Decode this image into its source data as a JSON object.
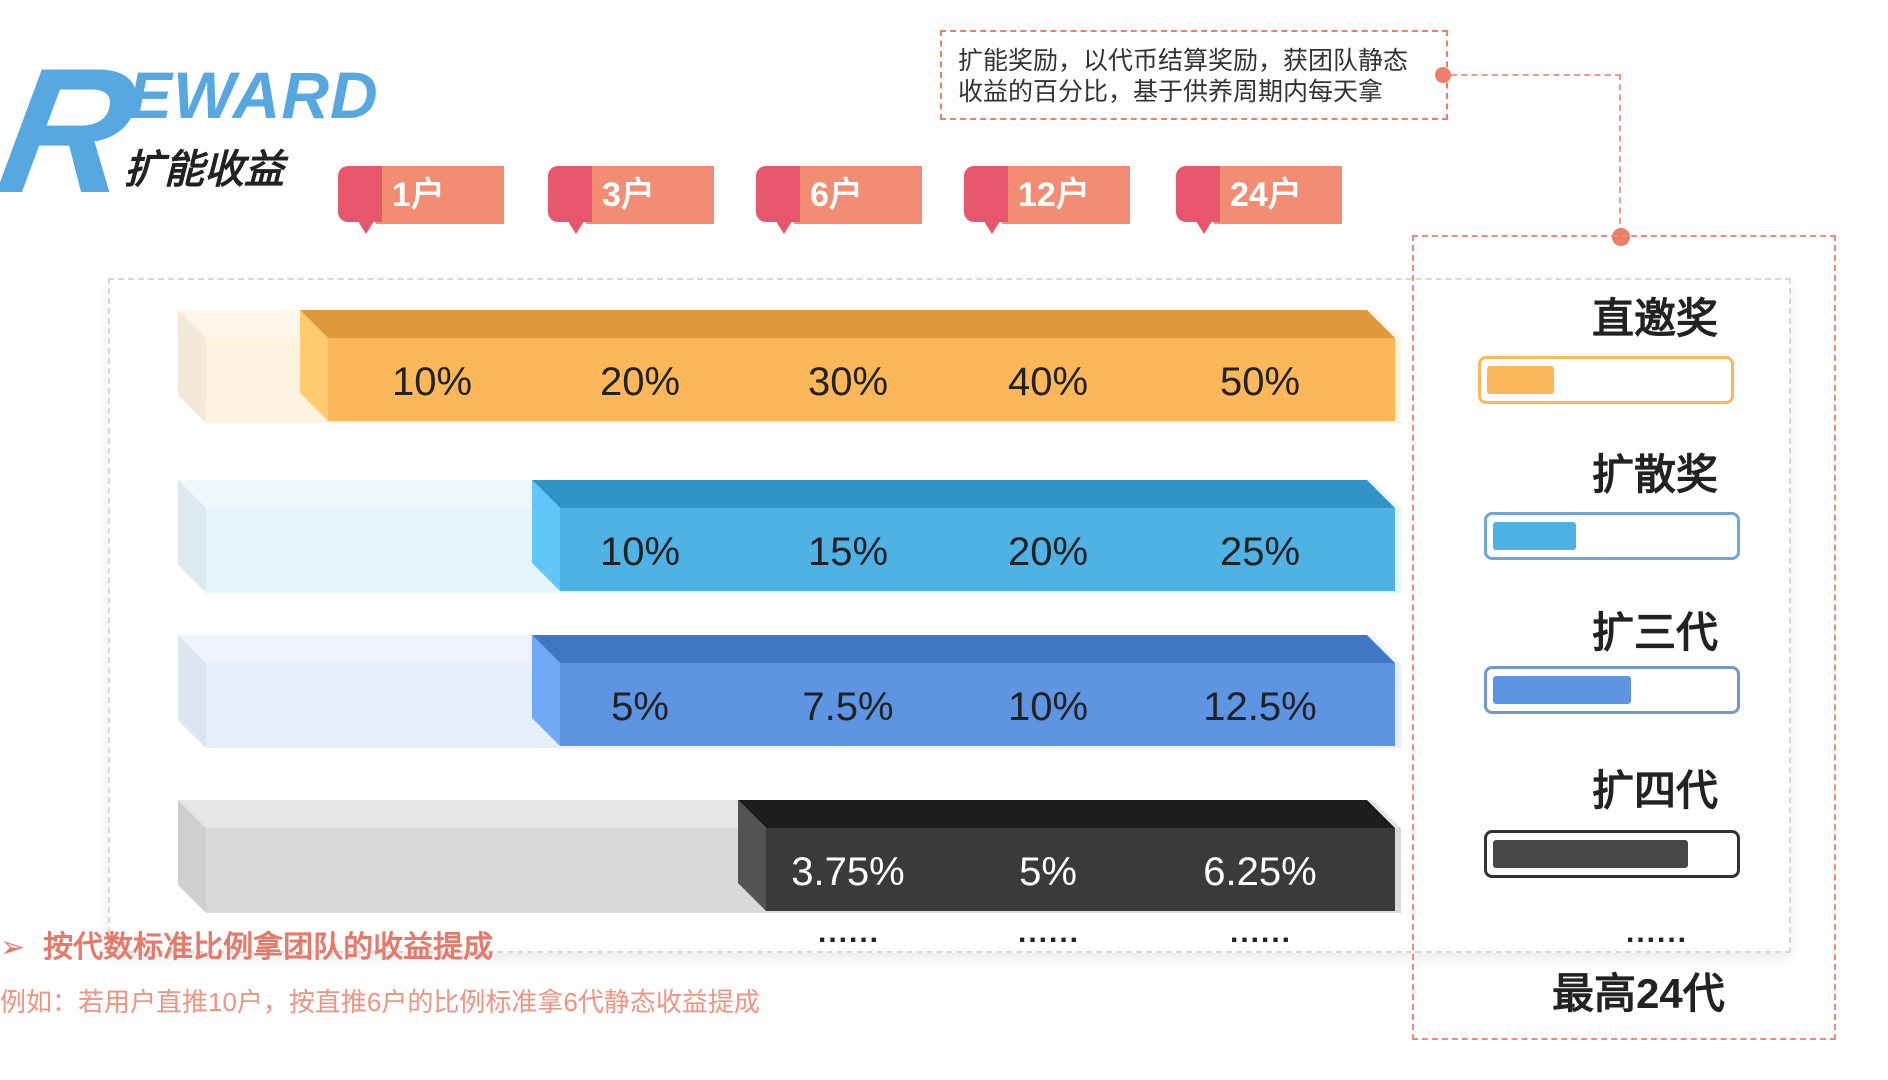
{
  "logo": {
    "letter": "R",
    "rest": "EWARD",
    "subtitle": "扩能收益"
  },
  "callout": {
    "line1": "扩能奖励，以代币结算奖励，获团队静态",
    "line2": "收益的百分比，基于供养周期内每天拿"
  },
  "tags": [
    "1户",
    "3户",
    "6户",
    "12户",
    "24户"
  ],
  "rows": [
    {
      "name": "直邀奖",
      "color": "#fbb75a",
      "values": [
        "10%",
        "20%",
        "30%",
        "40%",
        "50%"
      ],
      "start_col": 0
    },
    {
      "name": "扩散奖",
      "color": "#4fb2e5",
      "values": [
        "10%",
        "15%",
        "20%",
        "25%"
      ],
      "start_col": 1
    },
    {
      "name": "扩三代",
      "color": "#5d95e3",
      "values": [
        "5%",
        "7.5%",
        "10%",
        "12.5%"
      ],
      "start_col": 1
    },
    {
      "name": "扩四代",
      "color": "#3a3a3a",
      "values": [
        "3.75%",
        "5%",
        "6.25%"
      ],
      "start_col": 2
    }
  ],
  "legend": {
    "items": [
      {
        "label": "直邀奖",
        "color": "#fbb75a",
        "border": "#fbb75a",
        "level": 0.28
      },
      {
        "label": "扩散奖",
        "color": "#4fb2e5",
        "border": "#6fa7d6",
        "level": 0.35
      },
      {
        "label": "扩三代",
        "color": "#5d95e3",
        "border": "#6f99cc",
        "level": 0.58
      },
      {
        "label": "扩四代",
        "color": "#474747",
        "border": "#333333",
        "level": 0.82
      }
    ],
    "dots": "......",
    "max": "最高24代"
  },
  "dots": "......",
  "notes": {
    "line1": "按代数标准比例拿团队的收益提成",
    "line2": "例如：若用户直推10户，按直推6户的比例标准拿6代静态收益提成"
  }
}
